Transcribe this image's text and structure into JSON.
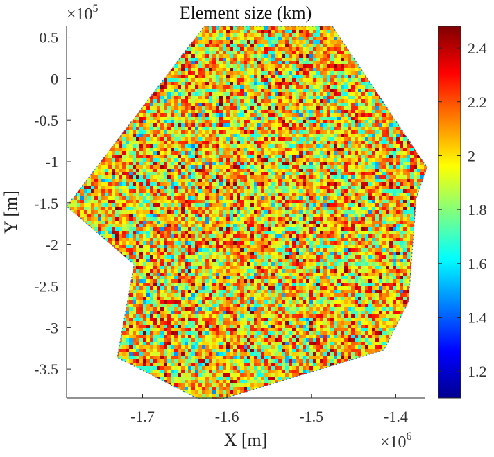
{
  "chart_data": {
    "type": "heatmap",
    "title": "Element size (km)",
    "xlabel": "X [m]",
    "ylabel": "Y [m]",
    "x_multiplier": "×10",
    "x_exponent": "6",
    "y_multiplier": "×10",
    "y_exponent": "5",
    "xlim": [
      -1.79,
      -1.365
    ],
    "ylim": [
      -3.85,
      0.63
    ],
    "xticks": [
      -1.7,
      -1.6,
      -1.5,
      -1.4
    ],
    "xtick_labels": [
      "-1.7",
      "-1.6",
      "-1.5",
      "-1.4"
    ],
    "yticks": [
      0.5,
      0,
      -0.5,
      -1,
      -1.5,
      -2,
      -2.5,
      -3,
      -3.5
    ],
    "ytick_labels": [
      "0.5",
      "0",
      "-0.5",
      "-1",
      "-1.5",
      "-2",
      "-2.5",
      "-3",
      "-3.5"
    ],
    "domain_outline": [
      [
        -1.627,
        0.63
      ],
      [
        -1.475,
        0.63
      ],
      [
        -1.363,
        -1.07
      ],
      [
        -1.376,
        -1.45
      ],
      [
        -1.385,
        -2.69
      ],
      [
        -1.414,
        -3.27
      ],
      [
        -1.605,
        -3.86
      ],
      [
        -1.634,
        -3.86
      ],
      [
        -1.73,
        -3.36
      ],
      [
        -1.71,
        -2.24
      ],
      [
        -1.79,
        -1.54
      ],
      [
        -1.627,
        0.63
      ]
    ],
    "colorbar": {
      "colormap": "jet",
      "lim": [
        1.1,
        2.48
      ],
      "ticks": [
        1.2,
        1.4,
        1.6,
        1.8,
        2,
        2.2,
        2.4
      ],
      "tick_labels": [
        "1.2",
        "1.4",
        "1.6",
        "1.8",
        "2",
        "2.2",
        "2.4"
      ]
    },
    "value_distribution": "mostly 1.8–2.4 (yellow/orange/red), some 1.6–1.8, few below 1.5 near boundary"
  }
}
